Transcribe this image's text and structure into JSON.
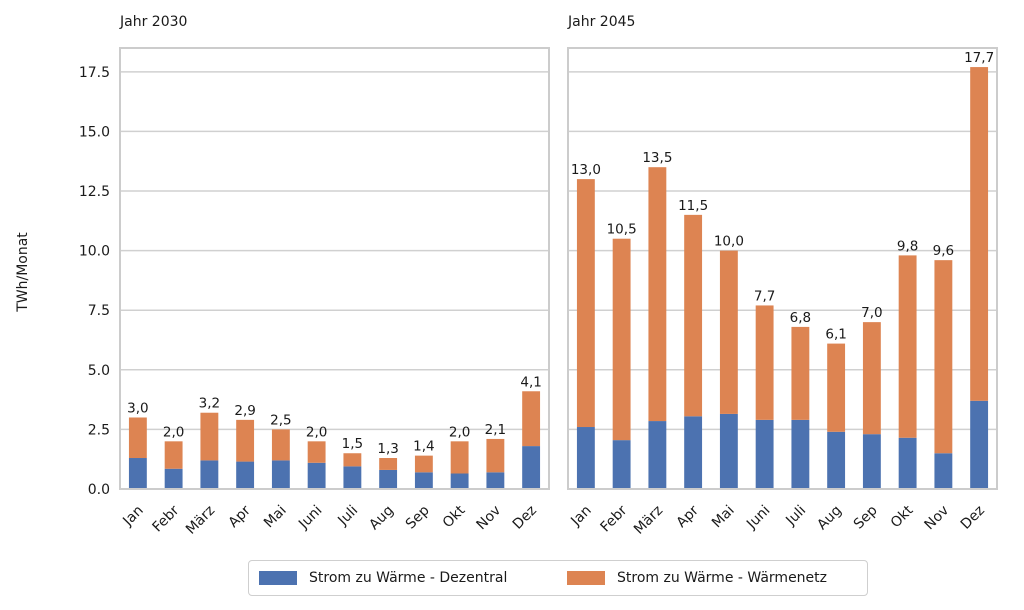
{
  "chart_data": [
    {
      "type": "bar",
      "stacked": true,
      "title": "Jahr 2030",
      "ylabel": "TWh/Monat",
      "ylim": [
        0,
        18.5
      ],
      "yticks": [
        "0.0",
        "2.5",
        "5.0",
        "7.5",
        "10.0",
        "12.5",
        "15.0",
        "17.5"
      ],
      "categories": [
        "Jan",
        "Febr",
        "März",
        "Apr",
        "Mai",
        "Juni",
        "Juli",
        "Aug",
        "Sep",
        "Okt",
        "Nov",
        "Dez"
      ],
      "series": [
        {
          "name": "Strom zu Wärme - Dezentral",
          "color": "#4c72b0",
          "values": [
            1.3,
            0.85,
            1.2,
            1.15,
            1.2,
            1.1,
            0.95,
            0.8,
            0.7,
            0.65,
            0.7,
            1.8
          ]
        },
        {
          "name": "Strom zu Wärme - Wärmenetz",
          "color": "#dd8452",
          "values": [
            1.7,
            1.15,
            2.0,
            1.75,
            1.3,
            0.9,
            0.55,
            0.5,
            0.7,
            1.35,
            1.4,
            2.3
          ]
        }
      ],
      "totals_labels": [
        "3,0",
        "2,0",
        "3,2",
        "2,9",
        "2,5",
        "2,0",
        "1,5",
        "1,3",
        "1,4",
        "2,0",
        "2,1",
        "4,1"
      ],
      "grid": true
    },
    {
      "type": "bar",
      "stacked": true,
      "title": "Jahr 2045",
      "ylim": [
        0,
        18.5
      ],
      "categories": [
        "Jan",
        "Febr",
        "März",
        "Apr",
        "Mai",
        "Juni",
        "Juli",
        "Aug",
        "Sep",
        "Okt",
        "Nov",
        "Dez"
      ],
      "series": [
        {
          "name": "Strom zu Wärme - Dezentral",
          "color": "#4c72b0",
          "values": [
            2.6,
            2.05,
            2.85,
            3.05,
            3.15,
            2.9,
            2.9,
            2.4,
            2.3,
            2.15,
            1.5,
            3.7
          ]
        },
        {
          "name": "Strom zu Wärme - Wärmenetz",
          "color": "#dd8452",
          "values": [
            10.4,
            8.45,
            10.65,
            8.45,
            6.85,
            4.8,
            3.9,
            3.7,
            4.7,
            7.65,
            8.1,
            14.0
          ]
        }
      ],
      "totals_labels": [
        "13,0",
        "10,5",
        "13,5",
        "11,5",
        "10,0",
        "7,7",
        "6,8",
        "6,1",
        "7,0",
        "9,8",
        "9,6",
        "17,7"
      ],
      "grid": true
    }
  ],
  "legend": {
    "items": [
      {
        "label": "Strom zu Wärme - Dezentral",
        "color": "#4c72b0"
      },
      {
        "label": "Strom zu Wärme - Wärmenetz",
        "color": "#dd8452"
      }
    ]
  }
}
